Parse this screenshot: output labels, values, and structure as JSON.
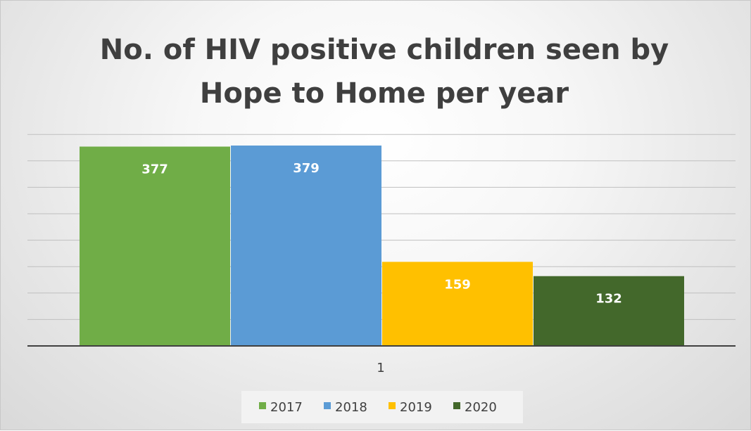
{
  "chart_data": {
    "type": "bar",
    "title_lines": [
      "No. of HIV positive children seen by",
      "Hope to Home per year"
    ],
    "categories": [
      "1"
    ],
    "series": [
      {
        "name": "2017",
        "values": [
          377
        ],
        "color": "#70ad47"
      },
      {
        "name": "2018",
        "values": [
          379
        ],
        "color": "#5b9bd5"
      },
      {
        "name": "2019",
        "values": [
          159
        ],
        "color": "#ffc000"
      },
      {
        "name": "2020",
        "values": [
          132
        ],
        "color": "#43682b"
      }
    ],
    "ylim": [
      0,
      400
    ],
    "gridlines": true,
    "data_labels": true,
    "legend_position": "bottom"
  }
}
